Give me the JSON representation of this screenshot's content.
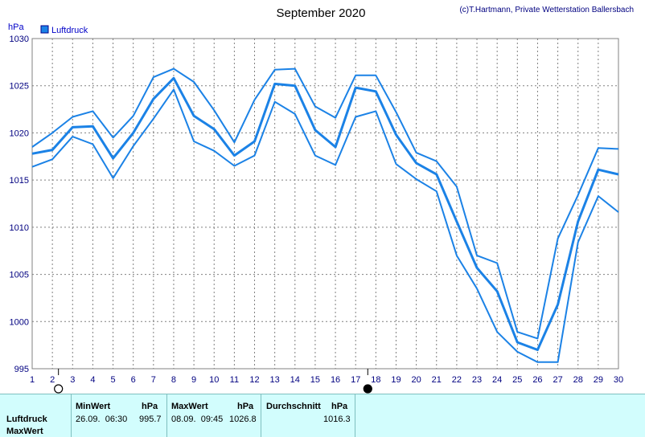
{
  "chart_data": {
    "type": "line",
    "title": "September 2020",
    "credit": "(c)T.Hartmann, Private Wetterstation Ballersbach",
    "ylabel": "hPa",
    "ylim": [
      995,
      1030
    ],
    "yticks": [
      995,
      1000,
      1005,
      1010,
      1015,
      1020,
      1025,
      1030
    ],
    "xlim": [
      1,
      30
    ],
    "xticks": [
      1,
      2,
      3,
      4,
      5,
      6,
      7,
      8,
      9,
      10,
      11,
      12,
      13,
      14,
      15,
      16,
      17,
      18,
      19,
      20,
      21,
      22,
      23,
      24,
      25,
      26,
      27,
      28,
      29,
      30
    ],
    "grid": true,
    "legend": "top-left",
    "legend_entries": [
      "Luftdruck"
    ],
    "series": [
      {
        "name": "Luftdruck",
        "role": "mean",
        "color": "#1b82e6",
        "x": [
          1,
          2,
          3,
          4,
          5,
          6,
          7,
          8,
          9,
          10,
          11,
          12,
          13,
          14,
          15,
          16,
          17,
          18,
          19,
          20,
          21,
          22,
          23,
          24,
          25,
          26,
          27,
          28,
          29,
          30
        ],
        "values": [
          1017.8,
          1018.2,
          1020.6,
          1020.7,
          1017.3,
          1020.0,
          1023.6,
          1025.8,
          1021.8,
          1020.4,
          1017.6,
          1019.1,
          1025.2,
          1025.0,
          1020.3,
          1018.5,
          1024.8,
          1024.4,
          1019.8,
          1016.8,
          1015.6,
          1010.6,
          1005.7,
          1003.2,
          997.8,
          997.0,
          1001.8,
          1010.6,
          1016.1,
          1015.6
        ]
      },
      {
        "role": "max",
        "color": "#1b82e6",
        "x": [
          1,
          2,
          3,
          4,
          5,
          6,
          7,
          8,
          9,
          10,
          11,
          12,
          13,
          14,
          15,
          16,
          17,
          18,
          19,
          20,
          21,
          22,
          23,
          24,
          25,
          26,
          27,
          28,
          29,
          30
        ],
        "values": [
          1018.5,
          1020.0,
          1021.7,
          1022.3,
          1019.5,
          1021.8,
          1025.9,
          1026.8,
          1025.4,
          1022.4,
          1019.0,
          1023.5,
          1026.7,
          1026.8,
          1022.8,
          1021.6,
          1026.1,
          1026.1,
          1022.2,
          1017.9,
          1017.0,
          1014.3,
          1007.0,
          1006.2,
          998.9,
          998.2,
          1008.8,
          1013.4,
          1018.4,
          1018.3
        ]
      },
      {
        "role": "min",
        "color": "#1b82e6",
        "x": [
          1,
          2,
          3,
          4,
          5,
          6,
          7,
          8,
          9,
          10,
          11,
          12,
          13,
          14,
          15,
          16,
          17,
          18,
          19,
          20,
          21,
          22,
          23,
          24,
          25,
          26,
          27,
          28,
          29,
          30
        ],
        "values": [
          1016.4,
          1017.2,
          1019.6,
          1018.8,
          1015.2,
          1018.6,
          1021.5,
          1024.6,
          1019.1,
          1018.1,
          1016.5,
          1017.6,
          1023.3,
          1022.0,
          1017.6,
          1016.6,
          1021.7,
          1022.3,
          1016.7,
          1015.1,
          1013.8,
          1007.0,
          1003.5,
          998.9,
          996.8,
          995.7,
          995.7,
          1008.4,
          1013.3,
          1011.6
        ]
      }
    ],
    "moon_phases": [
      {
        "x": 2.3,
        "phase": "full"
      },
      {
        "x": 17.6,
        "phase": "new"
      }
    ]
  },
  "stats": {
    "row_labels": [
      "Luftdruck",
      "MaxWert"
    ],
    "min": {
      "header": "MinWert",
      "unit": "hPa",
      "datetime": "26.09.  06:30",
      "value": "995.7"
    },
    "max": {
      "header": "MaxWert",
      "unit": "hPa",
      "datetime": "08.09.  09:45",
      "value": "1026.8"
    },
    "avg": {
      "header": "Durchschnitt",
      "unit": "hPa",
      "value": "1016.3"
    }
  }
}
